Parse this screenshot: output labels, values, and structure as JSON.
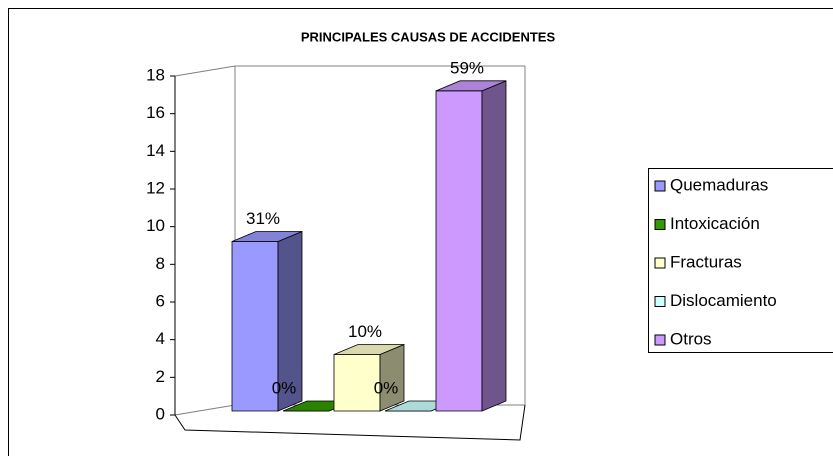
{
  "chart_data": {
    "type": "bar3d",
    "title": "PRINCIPALES CAUSAS DE ACCIDENTES",
    "categories": [
      "Quemaduras",
      "Intoxicación",
      "Fracturas",
      "Dislocamiento",
      "Otros"
    ],
    "values": [
      9,
      0,
      3,
      0,
      17
    ],
    "data_labels": [
      "31%",
      "0%",
      "10%",
      "0%",
      "59%"
    ],
    "colors": [
      "#9999ff",
      "#339900",
      "#ffffcc",
      "#ccffff",
      "#cc99ff"
    ],
    "ylim": [
      0,
      18
    ],
    "yticks": [
      0,
      2,
      4,
      6,
      8,
      10,
      12,
      14,
      16,
      18
    ],
    "legend": "right"
  }
}
